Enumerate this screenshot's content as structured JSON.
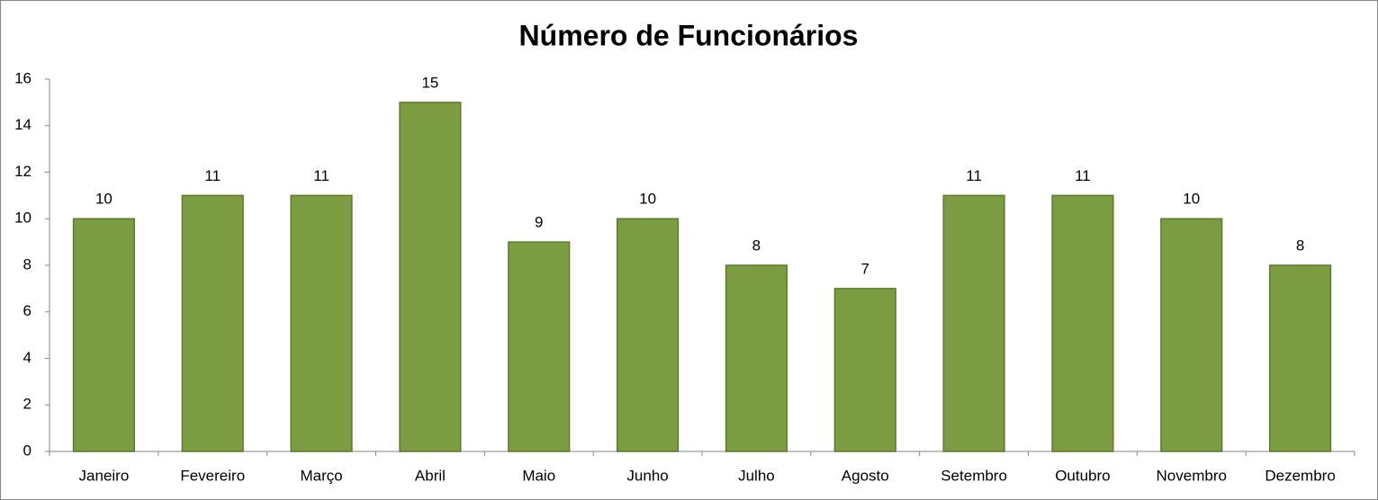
{
  "chart_data": {
    "type": "bar",
    "title": "Número de Funcionários",
    "categories": [
      "Janeiro",
      "Fevereiro",
      "Março",
      "Abril",
      "Maio",
      "Junho",
      "Julho",
      "Agosto",
      "Setembro",
      "Outubro",
      "Novembro",
      "Dezembro"
    ],
    "values": [
      10,
      11,
      11,
      15,
      9,
      10,
      8,
      7,
      11,
      11,
      10,
      8
    ],
    "color": "#7b9c41",
    "ylim": [
      0,
      16
    ],
    "yticks": [
      0,
      2,
      4,
      6,
      8,
      10,
      12,
      14,
      16
    ],
    "grid": false
  }
}
